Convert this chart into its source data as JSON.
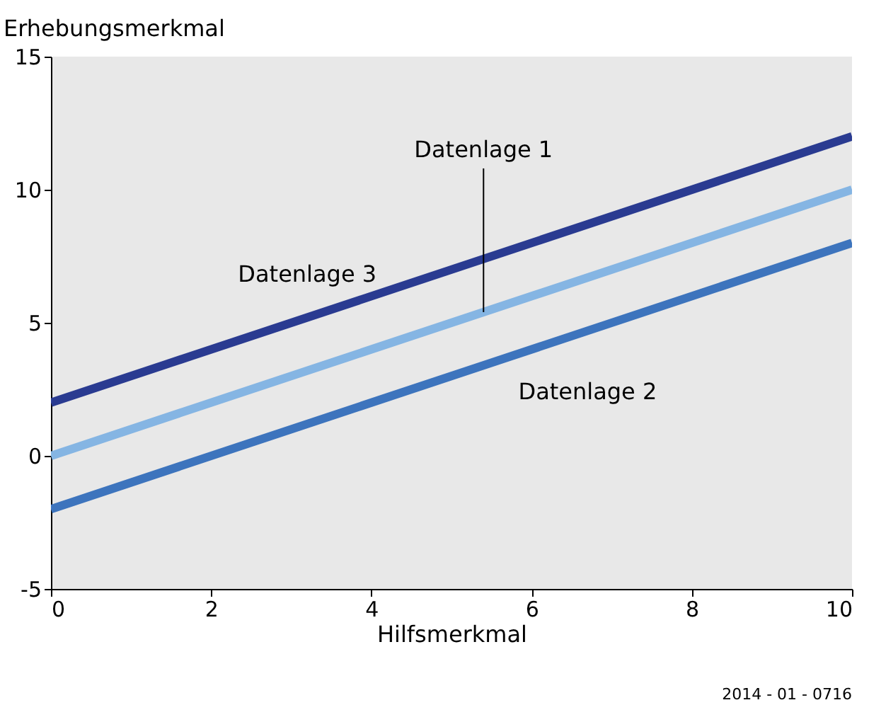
{
  "chart_data": {
    "type": "line",
    "xlabel": "Hilfsmerkmal",
    "ylabel": "Erhebungsmerkmal",
    "x": [
      0,
      10
    ],
    "series": [
      {
        "name": "Datenlage 1",
        "color": "#85b5e3",
        "values": [
          0,
          10
        ]
      },
      {
        "name": "Datenlage 2",
        "color": "#3d74bd",
        "values": [
          -2,
          8
        ]
      },
      {
        "name": "Datenlage 3",
        "color": "#2a3b91",
        "values": [
          2,
          12
        ]
      }
    ],
    "xlim": [
      0,
      10
    ],
    "xticks": [
      0,
      2,
      4,
      6,
      8,
      10
    ],
    "ylim": [
      -5,
      15
    ],
    "yticks": [
      -5,
      0,
      5,
      10,
      15
    ],
    "grid": false,
    "legend": false,
    "marker": "none",
    "line_style": "solid",
    "annotations": [
      "2014 - 01 - 0716"
    ]
  }
}
